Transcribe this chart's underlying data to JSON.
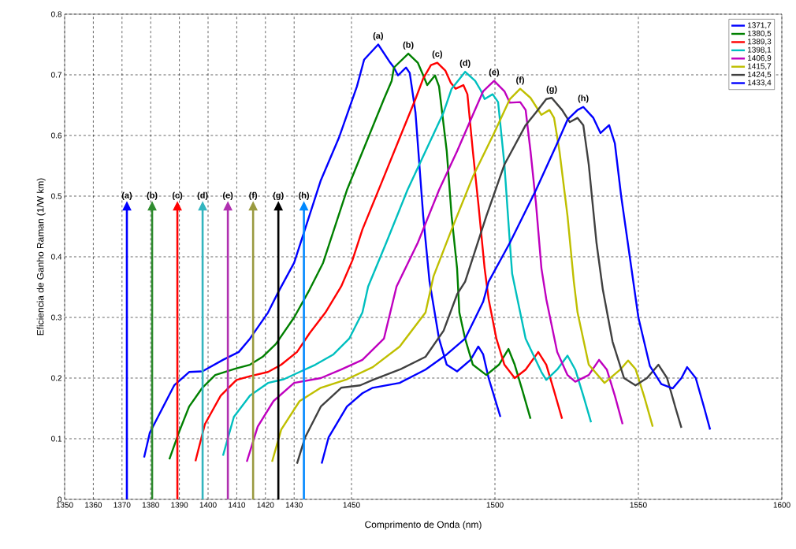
{
  "chart_data": {
    "type": "line",
    "xlabel": "Comprimento de Onda (nm)",
    "ylabel": "Eficiencia de Ganho Raman (1/W km)",
    "xlim": [
      1350,
      1600
    ],
    "ylim": [
      0,
      0.8
    ],
    "xticks": [
      1350,
      1360,
      1370,
      1380,
      1390,
      1400,
      1410,
      1420,
      1430,
      1450,
      1500,
      1550,
      1600
    ],
    "yticks": [
      0,
      0.1,
      0.2,
      0.3,
      0.4,
      0.5,
      0.6,
      0.7,
      0.8
    ],
    "grid": true,
    "legend": "top right",
    "line_style": "solid",
    "series": [
      {
        "name": "1371,7",
        "color": "#0000ff",
        "x": [
          1377.7,
          1379.7,
          1388.2,
          1393.4,
          1398,
          1405.2,
          1410.7,
          1414.6,
          1420.9,
          1424.5,
          1430,
          1439.3,
          1445.6,
          1451.9,
          1454.4,
          1459.3,
          1463.5,
          1464.8,
          1466.2,
          1469,
          1470.3,
          1472.3,
          1475,
          1477.2,
          1480.5,
          1483.2,
          1486.8,
          1491.5,
          1494.2,
          1495.9,
          1497.8,
          1501.9
        ],
        "values": [
          0.069,
          0.11,
          0.188,
          0.21,
          0.211,
          0.23,
          0.243,
          0.265,
          0.308,
          0.342,
          0.39,
          0.526,
          0.596,
          0.681,
          0.725,
          0.75,
          0.72,
          0.712,
          0.699,
          0.712,
          0.703,
          0.638,
          0.467,
          0.359,
          0.265,
          0.222,
          0.211,
          0.23,
          0.252,
          0.239,
          0.2,
          0.136
        ]
      },
      {
        "name": "1380,5",
        "color": "#008000",
        "x": [
          1386.5,
          1389.8,
          1393.4,
          1398,
          1402.5,
          1409.9,
          1414.6,
          1419,
          1423.6,
          1430,
          1435.4,
          1440.1,
          1448.4,
          1455.8,
          1461.3,
          1464,
          1464.8,
          1469.8,
          1473.1,
          1475,
          1476.4,
          1479.1,
          1480.5,
          1483.2,
          1484.9,
          1486.8,
          1487.6,
          1489.6,
          1492.3,
          1497,
          1501.4,
          1504.7,
          1506.9,
          1509.6,
          1512.4
        ],
        "values": [
          0.066,
          0.11,
          0.153,
          0.184,
          0.205,
          0.216,
          0.222,
          0.235,
          0.256,
          0.3,
          0.346,
          0.39,
          0.51,
          0.596,
          0.66,
          0.69,
          0.712,
          0.735,
          0.72,
          0.699,
          0.683,
          0.699,
          0.681,
          0.574,
          0.467,
          0.381,
          0.308,
          0.265,
          0.222,
          0.205,
          0.222,
          0.248,
          0.222,
          0.179,
          0.133
        ]
      },
      {
        "name": "1389,3",
        "color": "#ff0000",
        "x": [
          1395.6,
          1398.9,
          1404.4,
          1409.9,
          1414.6,
          1420.9,
          1425.5,
          1431,
          1435.4,
          1440.9,
          1446.4,
          1450.3,
          1453.8,
          1460.2,
          1466.8,
          1472.3,
          1475,
          1477.7,
          1479.9,
          1482.7,
          1484.6,
          1486.3,
          1489,
          1490.4,
          1492.3,
          1494.2,
          1496.4,
          1497.8,
          1500.5,
          1503.3,
          1506.9,
          1510.7,
          1515.1,
          1517.9,
          1520.6,
          1523.4
        ],
        "values": [
          0.063,
          0.124,
          0.171,
          0.197,
          0.203,
          0.21,
          0.222,
          0.243,
          0.274,
          0.308,
          0.351,
          0.394,
          0.445,
          0.519,
          0.596,
          0.66,
          0.694,
          0.716,
          0.72,
          0.707,
          0.687,
          0.677,
          0.683,
          0.668,
          0.574,
          0.488,
          0.381,
          0.33,
          0.265,
          0.222,
          0.2,
          0.214,
          0.243,
          0.222,
          0.179,
          0.133
        ]
      },
      {
        "name": "1398,1",
        "color": "#00bfbf",
        "x": [
          1405.2,
          1409,
          1414.6,
          1420.9,
          1426.4,
          1431.9,
          1437.4,
          1443.7,
          1449.2,
          1453.8,
          1455.8,
          1462.1,
          1469.5,
          1475.8,
          1482.1,
          1484.9,
          1489.6,
          1493.1,
          1495.1,
          1496.4,
          1499.2,
          1501.1,
          1503.3,
          1505.2,
          1506,
          1510.7,
          1516.2,
          1517.9,
          1521.7,
          1525.3,
          1528,
          1530.8,
          1533.5
        ],
        "values": [
          0.072,
          0.136,
          0.171,
          0.192,
          0.198,
          0.21,
          0.222,
          0.239,
          0.265,
          0.308,
          0.351,
          0.423,
          0.51,
          0.574,
          0.638,
          0.677,
          0.705,
          0.69,
          0.674,
          0.66,
          0.668,
          0.655,
          0.552,
          0.423,
          0.372,
          0.265,
          0.21,
          0.197,
          0.214,
          0.237,
          0.214,
          0.171,
          0.127
        ]
      },
      {
        "name": "1406,9",
        "color": "#bf00bf",
        "x": [
          1413.5,
          1417.3,
          1422.8,
          1430,
          1439.3,
          1446.4,
          1453.8,
          1461.3,
          1465.7,
          1473.1,
          1480.5,
          1486.8,
          1492.3,
          1495.9,
          1499.7,
          1503.3,
          1505.2,
          1508.8,
          1510.7,
          1512.4,
          1514.3,
          1516.2,
          1517.9,
          1521.7,
          1525.3,
          1528,
          1532.7,
          1536.3,
          1539,
          1541.8,
          1544.5
        ],
        "values": [
          0.062,
          0.12,
          0.162,
          0.192,
          0.2,
          0.214,
          0.23,
          0.265,
          0.351,
          0.423,
          0.51,
          0.574,
          0.634,
          0.673,
          0.69,
          0.673,
          0.654,
          0.655,
          0.642,
          0.574,
          0.488,
          0.381,
          0.33,
          0.243,
          0.205,
          0.194,
          0.205,
          0.23,
          0.214,
          0.171,
          0.124
        ]
      },
      {
        "name": "1415,7",
        "color": "#bfbf00",
        "x": [
          1422.3,
          1425.5,
          1431.9,
          1439.3,
          1448.4,
          1457.4,
          1466.8,
          1475.8,
          1478.6,
          1484.9,
          1492.3,
          1499.7,
          1505.2,
          1508.8,
          1512.4,
          1516.2,
          1519,
          1520.6,
          1522.5,
          1525.3,
          1527.5,
          1528.8,
          1532.7,
          1538.2,
          1543.7,
          1546.4,
          1549,
          1552,
          1555
        ],
        "values": [
          0.062,
          0.115,
          0.162,
          0.184,
          0.198,
          0.218,
          0.252,
          0.308,
          0.368,
          0.445,
          0.532,
          0.604,
          0.66,
          0.677,
          0.662,
          0.634,
          0.642,
          0.629,
          0.574,
          0.467,
          0.359,
          0.308,
          0.222,
          0.192,
          0.214,
          0.229,
          0.215,
          0.17,
          0.12
        ]
      },
      {
        "name": "1424,5",
        "color": "#404040",
        "x": [
          1431,
          1433.8,
          1439.3,
          1446.4,
          1453,
          1457.4,
          1466.8,
          1475.8,
          1482.1,
          1486.8,
          1489.6,
          1497,
          1503.3,
          1510.7,
          1514.3,
          1517.9,
          1519.8,
          1523.4,
          1526.1,
          1528.8,
          1530.8,
          1532.7,
          1535.4,
          1537.6,
          1541,
          1545,
          1549,
          1553,
          1557,
          1560,
          1563,
          1565
        ],
        "values": [
          0.059,
          0.102,
          0.153,
          0.184,
          0.188,
          0.197,
          0.214,
          0.235,
          0.278,
          0.338,
          0.359,
          0.467,
          0.552,
          0.617,
          0.638,
          0.66,
          0.662,
          0.642,
          0.622,
          0.629,
          0.617,
          0.552,
          0.423,
          0.346,
          0.26,
          0.2,
          0.188,
          0.2,
          0.222,
          0.2,
          0.15,
          0.118
        ]
      },
      {
        "name": "1433,4",
        "color": "#0000ff",
        "x": [
          1439.6,
          1442,
          1448.4,
          1453.8,
          1457.4,
          1466.8,
          1475.8,
          1483.2,
          1489.6,
          1495.9,
          1497.8,
          1505.2,
          1514.3,
          1521.7,
          1525.3,
          1528.8,
          1530.8,
          1534.3,
          1536.8,
          1539.8,
          1541.8,
          1544,
          1547,
          1550,
          1554,
          1558,
          1562,
          1565,
          1567,
          1570,
          1573,
          1575
        ],
        "values": [
          0.059,
          0.102,
          0.153,
          0.175,
          0.184,
          0.192,
          0.214,
          0.239,
          0.265,
          0.326,
          0.359,
          0.423,
          0.51,
          0.587,
          0.626,
          0.642,
          0.647,
          0.629,
          0.604,
          0.617,
          0.587,
          0.5,
          0.4,
          0.3,
          0.22,
          0.19,
          0.183,
          0.2,
          0.218,
          0.2,
          0.15,
          0.115
        ]
      }
    ],
    "ref_lines": [
      {
        "axis": "x",
        "value": 1371.7,
        "label": "(a)",
        "color": "#0000ff"
      },
      {
        "axis": "x",
        "value": 1380.5,
        "label": "(b)",
        "color": "#2e8b2e"
      },
      {
        "axis": "x",
        "value": 1389.3,
        "label": "(c)",
        "color": "#ff0000"
      },
      {
        "axis": "x",
        "value": 1398.1,
        "label": "(d)",
        "color": "#33b5bf"
      },
      {
        "axis": "x",
        "value": 1406.9,
        "label": "(e)",
        "color": "#b030b0"
      },
      {
        "axis": "x",
        "value": 1415.7,
        "label": "(f)",
        "color": "#9a9a40"
      },
      {
        "axis": "x",
        "value": 1424.5,
        "label": "(g)",
        "color": "#000000"
      },
      {
        "axis": "x",
        "value": 1433.4,
        "label": "(h)",
        "color": "#0088ff"
      }
    ],
    "annotations": [
      {
        "text": "(a)",
        "x": 1459.3,
        "y": 0.75
      },
      {
        "text": "(b)",
        "x": 1469.8,
        "y": 0.735
      },
      {
        "text": "(c)",
        "x": 1479.9,
        "y": 0.72
      },
      {
        "text": "(d)",
        "x": 1489.6,
        "y": 0.705
      },
      {
        "text": "(e)",
        "x": 1499.7,
        "y": 0.69
      },
      {
        "text": "(f)",
        "x": 1508.8,
        "y": 0.677
      },
      {
        "text": "(g)",
        "x": 1519.8,
        "y": 0.662
      },
      {
        "text": "(h)",
        "x": 1530.8,
        "y": 0.647
      }
    ]
  }
}
